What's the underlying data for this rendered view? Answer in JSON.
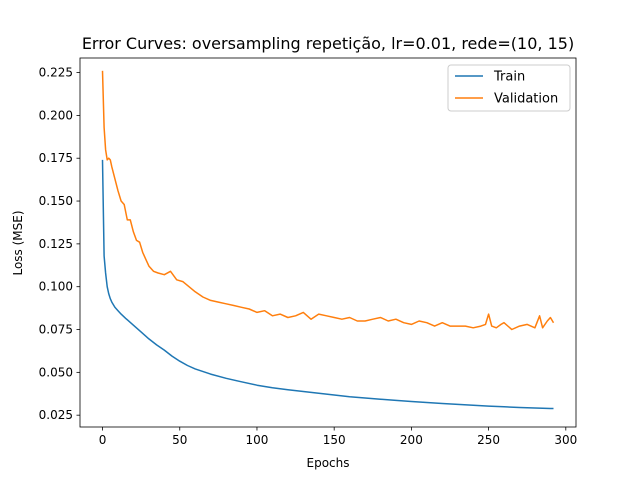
{
  "chart_data": {
    "type": "line",
    "title": "Error Curves: oversampling repetição, lr=0.01, rede=(10, 15)",
    "xlabel": "Epochs",
    "ylabel": "Loss (MSE)",
    "xlim": [
      -14.6,
      306.6
    ],
    "ylim": [
      0.0181,
      0.2335
    ],
    "xticks": [
      0,
      50,
      100,
      150,
      200,
      250,
      300
    ],
    "xtick_labels": [
      "0",
      "50",
      "100",
      "150",
      "200",
      "250",
      "300"
    ],
    "yticks": [
      0.025,
      0.05,
      0.075,
      0.1,
      0.125,
      0.15,
      0.175,
      0.2,
      0.225
    ],
    "ytick_labels": [
      "0.025",
      "0.050",
      "0.075",
      "0.100",
      "0.125",
      "0.150",
      "0.175",
      "0.200",
      "0.225"
    ],
    "grid": false,
    "legend_position": "top-right",
    "series": [
      {
        "name": "Train",
        "color": "#1f77b4",
        "x": [
          0,
          1,
          2,
          3,
          4,
          5,
          6,
          8,
          10,
          12,
          15,
          20,
          25,
          30,
          35,
          40,
          45,
          50,
          55,
          60,
          70,
          80,
          90,
          100,
          110,
          120,
          130,
          140,
          150,
          160,
          170,
          180,
          190,
          200,
          210,
          220,
          230,
          240,
          250,
          260,
          270,
          280,
          290,
          292
        ],
        "y": [
          0.174,
          0.118,
          0.108,
          0.1,
          0.096,
          0.093,
          0.091,
          0.088,
          0.086,
          0.084,
          0.0815,
          0.0775,
          0.0735,
          0.0695,
          0.066,
          0.063,
          0.0595,
          0.0565,
          0.054,
          0.052,
          0.049,
          0.0465,
          0.0445,
          0.0425,
          0.041,
          0.0398,
          0.0388,
          0.0378,
          0.0368,
          0.0358,
          0.035,
          0.0343,
          0.0336,
          0.033,
          0.0324,
          0.0318,
          0.0313,
          0.0308,
          0.0303,
          0.0299,
          0.0295,
          0.0292,
          0.0289,
          0.0289
        ]
      },
      {
        "name": "Validation",
        "color": "#ff7f0e",
        "x": [
          0,
          1,
          2,
          3,
          4,
          5,
          6,
          8,
          10,
          12,
          14,
          16,
          18,
          20,
          22,
          24,
          26,
          28,
          30,
          33,
          36,
          40,
          44,
          48,
          52,
          56,
          60,
          65,
          70,
          75,
          80,
          85,
          90,
          95,
          100,
          105,
          110,
          115,
          120,
          125,
          130,
          135,
          140,
          145,
          150,
          155,
          160,
          165,
          170,
          175,
          180,
          185,
          190,
          195,
          200,
          205,
          210,
          215,
          220,
          225,
          230,
          235,
          240,
          245,
          248,
          250,
          252,
          255,
          258,
          260,
          265,
          270,
          275,
          280,
          283,
          285,
          288,
          290,
          292
        ],
        "y": [
          0.226,
          0.193,
          0.18,
          0.174,
          0.175,
          0.174,
          0.17,
          0.163,
          0.156,
          0.15,
          0.148,
          0.139,
          0.139,
          0.132,
          0.127,
          0.126,
          0.12,
          0.116,
          0.112,
          0.109,
          0.108,
          0.107,
          0.109,
          0.104,
          0.103,
          0.1,
          0.097,
          0.094,
          0.092,
          0.091,
          0.09,
          0.089,
          0.088,
          0.087,
          0.085,
          0.086,
          0.083,
          0.084,
          0.082,
          0.083,
          0.085,
          0.081,
          0.084,
          0.083,
          0.082,
          0.081,
          0.082,
          0.08,
          0.08,
          0.081,
          0.082,
          0.08,
          0.081,
          0.079,
          0.078,
          0.08,
          0.079,
          0.077,
          0.079,
          0.077,
          0.077,
          0.077,
          0.076,
          0.077,
          0.078,
          0.084,
          0.077,
          0.076,
          0.078,
          0.079,
          0.075,
          0.077,
          0.078,
          0.076,
          0.083,
          0.076,
          0.08,
          0.082,
          0.079
        ]
      }
    ]
  }
}
